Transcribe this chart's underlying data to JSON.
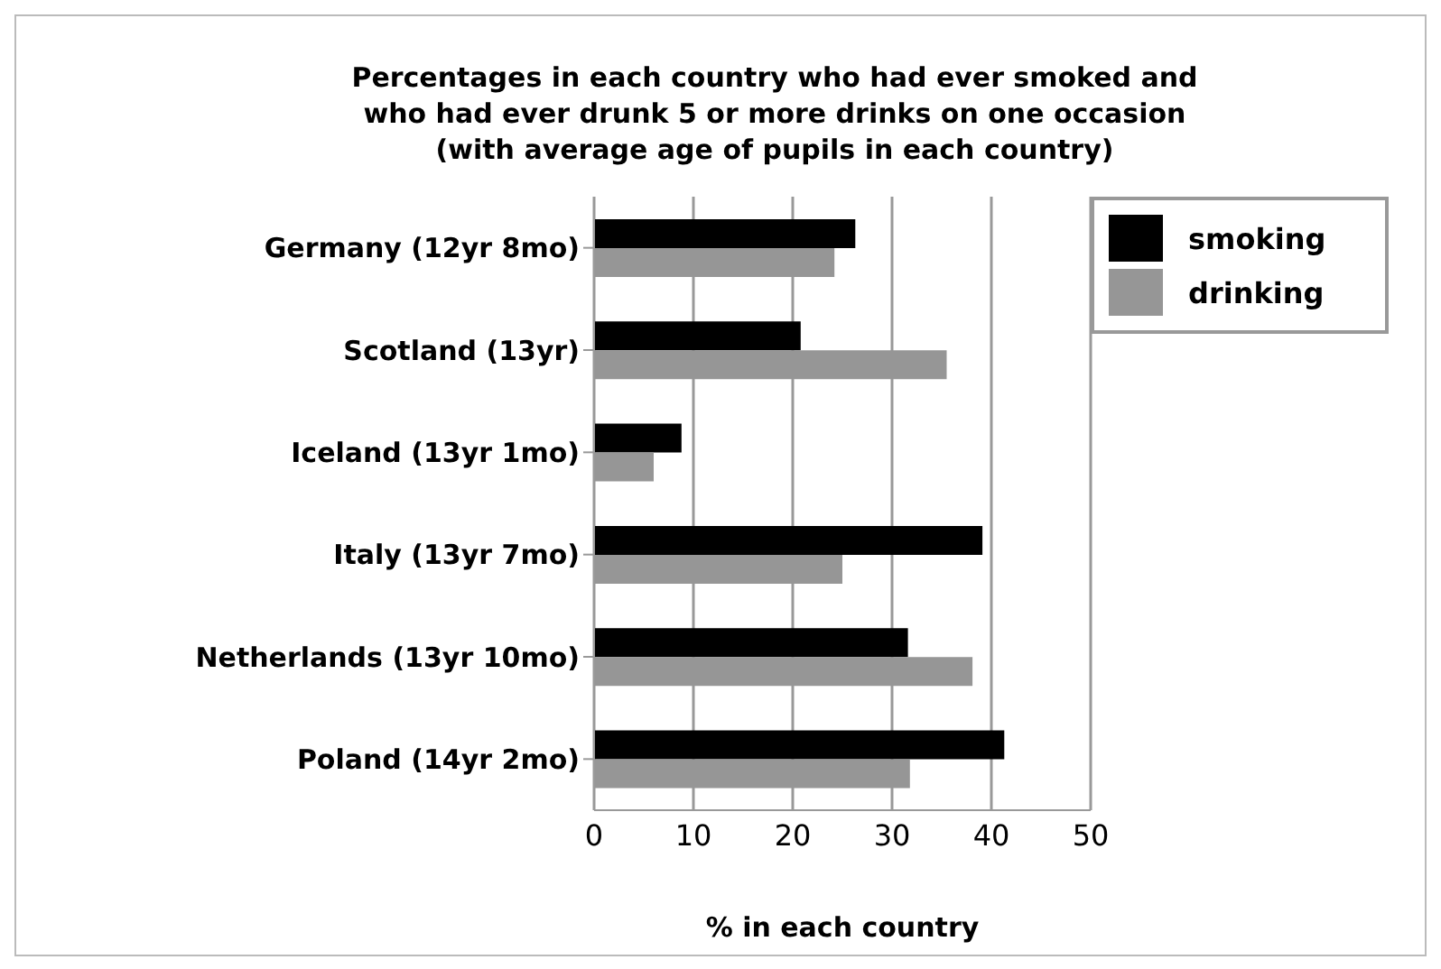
{
  "chart_data": {
    "type": "bar",
    "orientation": "horizontal",
    "title": "Percentages in each country who had ever smoked and\nwho had ever drunk 5 or more drinks on one occasion\n(with average age of pupils in each country)",
    "xlabel": "% in each country",
    "categories": [
      "Germany (12yr 8mo)",
      "Scotland (13yr)",
      "Iceland (13yr 1mo)",
      "Italy (13yr 7mo)",
      "Netherlands (13yr 10mo)",
      "Poland (14yr 2mo)"
    ],
    "series": [
      {
        "name": "smoking",
        "color": "#000000",
        "values": [
          26.3,
          20.8,
          8.8,
          39.1,
          31.6,
          41.3
        ]
      },
      {
        "name": "drinking",
        "color": "#969696",
        "values": [
          24.2,
          35.5,
          6.0,
          25.0,
          38.1,
          31.8
        ]
      }
    ],
    "xlim": [
      0,
      50
    ],
    "xticks": [
      0,
      10,
      20,
      30,
      40,
      50
    ],
    "grid": "x",
    "legend": "top right"
  }
}
